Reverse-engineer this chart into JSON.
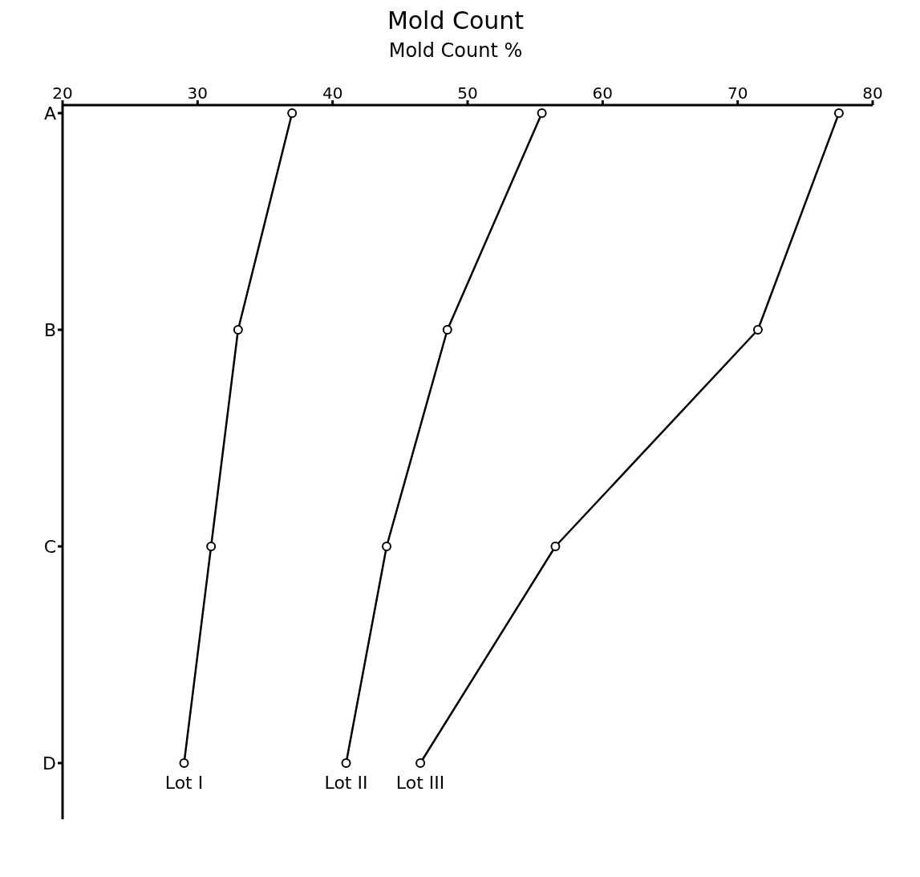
{
  "chart_data": {
    "type": "line",
    "title": "Mold Count",
    "xlabel": "Mold Count %",
    "orientation": "horizontal",
    "categories": [
      "A",
      "B",
      "C",
      "D"
    ],
    "series": [
      {
        "name": "Lot I",
        "color": "#000000",
        "values": [
          37,
          33,
          31,
          29
        ]
      },
      {
        "name": "Lot II",
        "color": "#000000",
        "values": [
          55.5,
          48.5,
          44,
          41
        ]
      },
      {
        "name": "Lot III",
        "color": "#000000",
        "values": [
          77.5,
          71.5,
          56.5,
          46.5
        ]
      }
    ],
    "xlim": [
      20,
      80
    ],
    "xticks": [
      20,
      30,
      40,
      50,
      60,
      70,
      80
    ],
    "marker": "circle",
    "line_style": "solid"
  }
}
